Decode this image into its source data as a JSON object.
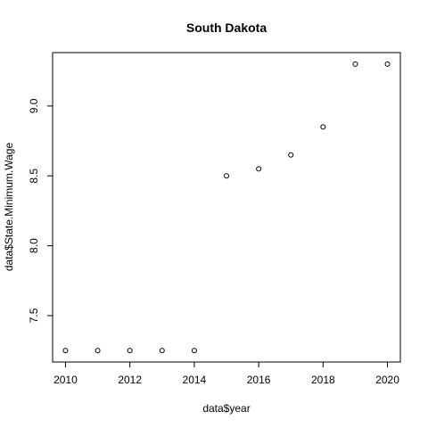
{
  "chart_data": {
    "type": "scatter",
    "title": "South Dakota",
    "xlabel": "data$year",
    "ylabel": "data$State.Minimum.Wage",
    "x": [
      2010,
      2011,
      2012,
      2013,
      2014,
      2015,
      2016,
      2017,
      2018,
      2019,
      2020
    ],
    "y": [
      7.25,
      7.25,
      7.25,
      7.25,
      7.25,
      8.5,
      8.55,
      8.65,
      8.85,
      9.3,
      9.3
    ],
    "xlim": [
      2009.6,
      2020.4
    ],
    "ylim": [
      7.168,
      9.382
    ],
    "xticks": [
      2010,
      2012,
      2014,
      2016,
      2018,
      2020
    ],
    "xtick_labels": [
      "2010",
      "2012",
      "2014",
      "2016",
      "2018",
      "2020"
    ],
    "yticks": [
      7.5,
      8.0,
      8.5,
      9.0
    ],
    "ytick_labels": [
      "7.5",
      "8.0",
      "8.5",
      "9.0"
    ],
    "grid": false,
    "legend": "none",
    "colors": {
      "points": "#000000",
      "axes": "#000000",
      "background": "#ffffff"
    }
  }
}
